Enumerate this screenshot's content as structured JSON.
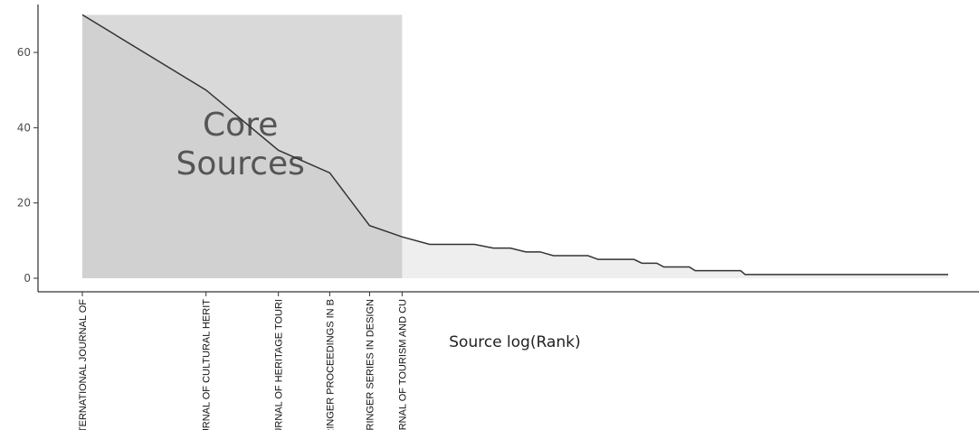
{
  "chart_data": {
    "type": "area",
    "xlabel": "Source log(Rank)",
    "ylabel": "",
    "ylim": [
      0,
      70
    ],
    "y_ticks": [
      0,
      20,
      40,
      60
    ],
    "x_scale": "log",
    "x_tick_labels": [
      {
        "rank": 1,
        "label": "INTERNATIONAL JOURNAL OF"
      },
      {
        "rank": 2,
        "label": "JOURNAL OF CULTURAL HERIT"
      },
      {
        "rank": 3,
        "label": "JOURNAL OF HERITAGE TOURI"
      },
      {
        "rank": 4,
        "label": "SPRINGER PROCEEDINGS IN B"
      },
      {
        "rank": 5,
        "label": "SPRINGER SERIES IN DESIGN"
      },
      {
        "rank": 6,
        "label": "JOURNAL OF TOURISM AND CU"
      }
    ],
    "core_zone": {
      "label_line1": "Core",
      "label_line2": "Sources",
      "from_rank": 1,
      "to_rank": 6,
      "top_value": 70
    },
    "series": [
      {
        "points": [
          [
            1,
            70
          ],
          [
            2,
            50
          ],
          [
            3,
            34
          ],
          [
            4,
            28
          ],
          [
            5,
            14
          ],
          [
            6,
            11
          ],
          [
            7,
            9
          ],
          [
            8,
            9
          ],
          [
            9,
            9
          ],
          [
            10,
            8
          ],
          [
            11,
            8
          ],
          [
            12,
            7
          ],
          [
            13,
            7
          ],
          [
            14,
            6
          ],
          [
            15,
            6
          ],
          [
            16,
            6
          ],
          [
            17,
            6
          ],
          [
            18,
            5
          ],
          [
            19,
            5
          ],
          [
            20,
            5
          ],
          [
            21,
            5
          ],
          [
            22,
            5
          ],
          [
            23,
            4
          ],
          [
            24,
            4
          ],
          [
            25,
            4
          ],
          [
            26,
            3
          ],
          [
            27,
            3
          ],
          [
            28,
            3
          ],
          [
            29,
            3
          ],
          [
            30,
            3
          ],
          [
            31,
            2
          ],
          [
            32,
            2
          ],
          [
            33,
            2
          ],
          [
            34,
            2
          ],
          [
            35,
            2
          ],
          [
            36,
            2
          ],
          [
            37,
            2
          ],
          [
            38,
            2
          ],
          [
            39,
            2
          ],
          [
            40,
            2
          ],
          [
            41,
            1
          ],
          [
            50,
            1
          ],
          [
            60,
            1
          ],
          [
            70,
            1
          ],
          [
            80,
            1
          ],
          [
            90,
            1
          ],
          [
            100,
            1
          ],
          [
            110,
            1
          ],
          [
            120,
            1
          ],
          [
            128,
            1
          ]
        ]
      }
    ],
    "grid": false,
    "colors": {
      "core_fill": "#d9d9d9",
      "tail_fill": "#eeeeee",
      "line": "#333333",
      "axis": "#000000"
    }
  }
}
